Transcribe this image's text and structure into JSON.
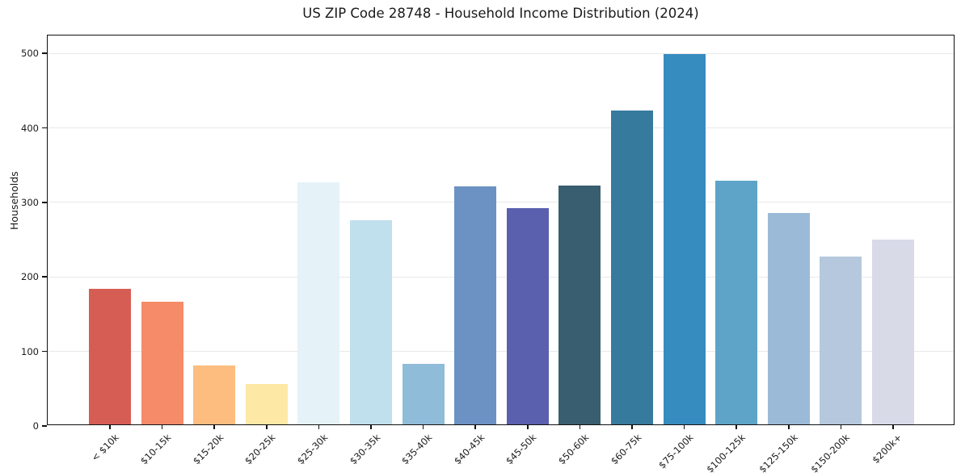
{
  "chart_data": {
    "type": "bar",
    "title": "US ZIP Code 28748 - Household Income Distribution (2024)",
    "xlabel": "",
    "ylabel": "Households",
    "categories": [
      "< $10k",
      "$10-15k",
      "$15-20k",
      "$20-25k",
      "$25-30k",
      "$30-35k",
      "$35-40k",
      "$40-45k",
      "$45-50k",
      "$50-60k",
      "$60-75k",
      "$75-100k",
      "$100-125k",
      "$125-150k",
      "$150-200k",
      "$200k+"
    ],
    "values": [
      182,
      165,
      79,
      54,
      325,
      274,
      81,
      319,
      290,
      320,
      421,
      497,
      327,
      284,
      225,
      248
    ],
    "bar_colors": [
      "#d65d54",
      "#f58b68",
      "#fcbd7e",
      "#fde9a5",
      "#e5f2f7",
      "#bfe0ec",
      "#8fbcd9",
      "#6b92c3",
      "#5a5fae",
      "#385e70",
      "#367a9e",
      "#368cbf",
      "#5da4c8",
      "#9bbad8",
      "#b5c8dd",
      "#d8dae8"
    ],
    "yticks": [
      0,
      100,
      200,
      300,
      400,
      500
    ],
    "ylim": [
      0,
      524
    ],
    "grid": "horizontal",
    "legend": "none",
    "background_color": "#ffffff",
    "text_color": "#1a1a1a",
    "grid_color": "#e9e9e9",
    "spine_color": "#111111"
  }
}
